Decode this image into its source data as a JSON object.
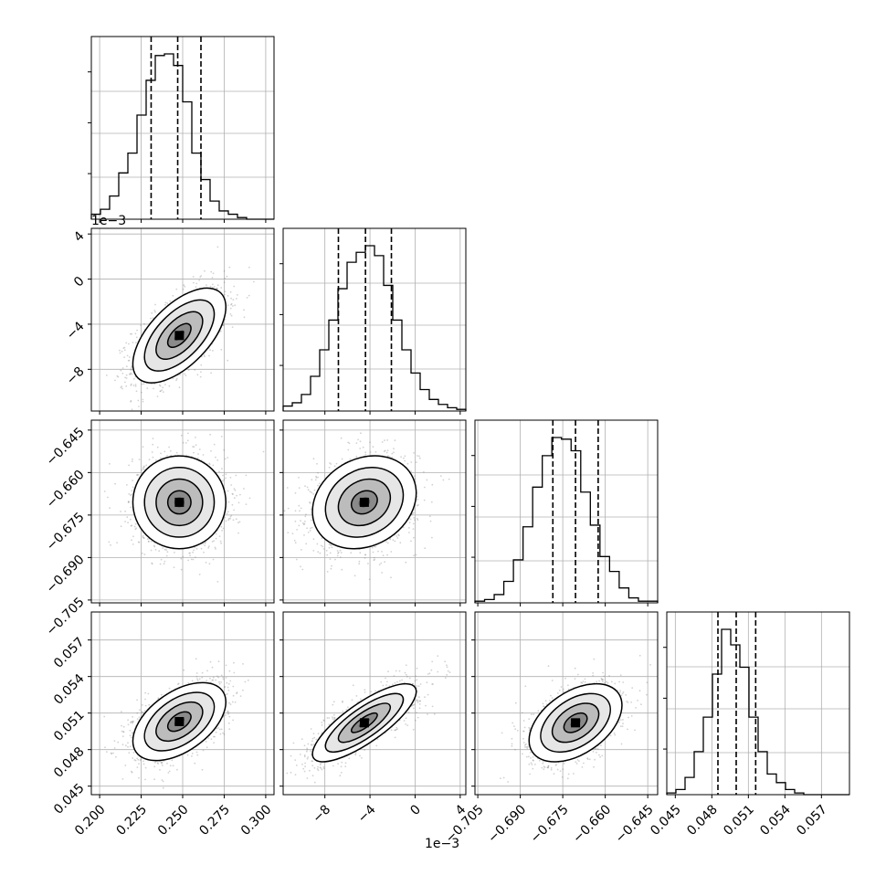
{
  "chart_data": {
    "type": "corner",
    "parameters": [
      {
        "ticks": [
          0.2,
          0.225,
          0.25,
          0.275,
          0.3
        ],
        "tick_labels": [
          "0.200",
          "0.225",
          "0.250",
          "0.275",
          "0.300"
        ],
        "range": [
          0.195,
          0.305
        ],
        "offset_label": "",
        "median": 0.247,
        "q16": 0.231,
        "q84": 0.261,
        "hist_counts": [
          3,
          6,
          14,
          28,
          40,
          63,
          84,
          99,
          100,
          93,
          71,
          40,
          24,
          11,
          5,
          3,
          1,
          0,
          0,
          0
        ]
      },
      {
        "ticks": [
          -8,
          -4,
          0,
          4
        ],
        "tick_labels": [
          "−8",
          "−4",
          "0",
          "4"
        ],
        "range": [
          -11.7,
          4.5
        ],
        "offset_label": "1e−3",
        "median": -4.4,
        "q16": -6.8,
        "q84": -2.1,
        "hist_counts": [
          3,
          5,
          10,
          21,
          37,
          55,
          74,
          90,
          96,
          100,
          94,
          76,
          55,
          37,
          23,
          13,
          7,
          4,
          2,
          1
        ]
      },
      {
        "ticks": [
          -0.705,
          -0.69,
          -0.675,
          -0.66,
          -0.645
        ],
        "tick_labels": [
          "−0.705",
          "−0.690",
          "−0.675",
          "−0.660",
          "−0.645"
        ],
        "range": [
          -0.706,
          -0.6415
        ],
        "offset_label": "",
        "median": -0.6705,
        "q16": -0.6785,
        "q84": -0.6625,
        "hist_counts": [
          1,
          2,
          5,
          13,
          26,
          46,
          70,
          89,
          100,
          99,
          92,
          67,
          47,
          28,
          19,
          9,
          3,
          1,
          1
        ]
      },
      {
        "ticks": [
          0.045,
          0.048,
          0.051,
          0.054,
          0.057
        ],
        "tick_labels": [
          "0.045",
          "0.048",
          "0.051",
          "0.054",
          "0.057"
        ],
        "range": [
          0.0443,
          0.0593
        ],
        "offset_label": "",
        "median": 0.05,
        "q16": 0.0485,
        "q84": 0.0516,
        "hist_counts": [
          1,
          3,
          10,
          25,
          45,
          70,
          96,
          87,
          74,
          45,
          25,
          12,
          7,
          3,
          1,
          0,
          0,
          0,
          0,
          0
        ]
      }
    ],
    "correlations": [
      {
        "row": 1,
        "col": 0,
        "mean_x": 0.248,
        "mean_y": -5.0,
        "sd_x": 0.014,
        "sd_y": 2.1,
        "rho": 0.6
      },
      {
        "row": 2,
        "col": 0,
        "mean_x": 0.248,
        "mean_y": -0.6705,
        "sd_x": 0.014,
        "sd_y": 0.0082,
        "rho": 0.0
      },
      {
        "row": 2,
        "col": 1,
        "mean_x": -4.5,
        "mean_y": -0.6705,
        "sd_x": 2.3,
        "sd_y": 0.0082,
        "rho": 0.2
      },
      {
        "row": 3,
        "col": 0,
        "mean_x": 0.248,
        "mean_y": 0.0503,
        "sd_x": 0.014,
        "sd_y": 0.0016,
        "rho": 0.5
      },
      {
        "row": 3,
        "col": 1,
        "mean_x": -4.5,
        "mean_y": 0.0502,
        "sd_x": 2.3,
        "sd_y": 0.0016,
        "rho": 0.8
      },
      {
        "row": 3,
        "col": 2,
        "mean_x": -0.6705,
        "mean_y": 0.0502,
        "sd_x": 0.0082,
        "sd_y": 0.0016,
        "rho": 0.45
      }
    ],
    "contour_levels_sigma": [
      0.5,
      1.0,
      1.5,
      2.0
    ],
    "quantiles": [
      0.16,
      0.5,
      0.84
    ],
    "grid": true,
    "colors": {
      "line": "#000000",
      "grid": "#b0b0b0",
      "points": "#7f7f7f"
    }
  }
}
